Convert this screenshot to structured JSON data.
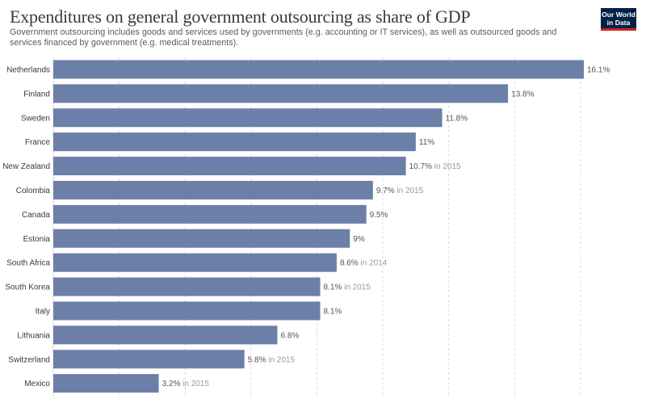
{
  "header": {
    "title": "Expenditures on general government outsourcing as share of GDP",
    "subtitle": "Government outsourcing includes goods and services used by governments (e.g. accounting or IT services), as well as outsourced goods and services financed by government (e.g. medical treatments).",
    "logo_line1": "Our World",
    "logo_line2": "in Data"
  },
  "colors": {
    "bar": "#6b7fa8",
    "grid": "#d9d9d9",
    "logo_bg": "#002147",
    "logo_stripe": "#ce261e"
  },
  "chart_data": {
    "type": "bar",
    "orientation": "horizontal",
    "xlim": [
      0,
      16.1
    ],
    "grid": true,
    "unit": "%",
    "categories": [
      "Netherlands",
      "Finland",
      "Sweden",
      "France",
      "New Zealand",
      "Colombia",
      "Canada",
      "Estonia",
      "South Africa",
      "South Korea",
      "Italy",
      "Lithuania",
      "Switzerland",
      "Mexico"
    ],
    "values": [
      16.1,
      13.8,
      11.8,
      11,
      10.7,
      9.7,
      9.5,
      9,
      8.6,
      8.1,
      8.1,
      6.8,
      5.8,
      3.2
    ],
    "value_labels": [
      "16.1%",
      "13.8%",
      "11.8%",
      "11%",
      "10.7%",
      "9.7%",
      "9.5%",
      "9%",
      "8.6%",
      "8.1%",
      "8.1%",
      "6.8%",
      "5.8%",
      "3.2%"
    ],
    "year_notes": [
      "",
      "",
      "",
      "",
      "in 2015",
      "in 2015",
      "",
      "",
      "in 2014",
      "in 2015",
      "",
      "",
      "in 2015",
      "in 2015"
    ]
  }
}
